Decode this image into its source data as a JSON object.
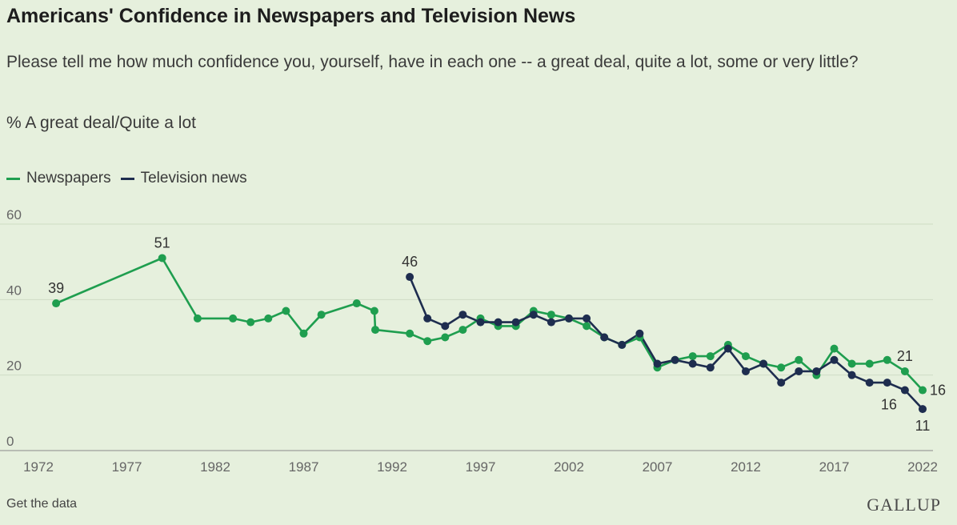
{
  "header": {
    "title": "Americans' Confidence in Newspapers and Television News",
    "subtitle": "Please tell me how much confidence you, yourself, have in each one -- a great deal, quite a lot, some or very little?",
    "measure": "% A great deal/Quite a lot"
  },
  "footer": {
    "data_link": "Get the data",
    "logo": "GALLUP"
  },
  "colors": {
    "newspapers": "#1f9e4f",
    "television": "#1e2d4f",
    "grid": "#cfdcc4",
    "axis_text": "#666666",
    "background": "#e6f0dd"
  },
  "chart_data": {
    "type": "line",
    "ylim": [
      0,
      60
    ],
    "yticks": [
      0,
      20,
      40,
      60
    ],
    "xlim": [
      1972,
      2022
    ],
    "xticks": [
      1972,
      1977,
      1982,
      1987,
      1992,
      1997,
      2002,
      2007,
      2012,
      2017,
      2022
    ],
    "grid": "horizontal",
    "legend": "top-left",
    "series": [
      {
        "name": "Newspapers",
        "color": "#1f9e4f",
        "points": [
          [
            1973,
            39
          ],
          [
            1979,
            51
          ],
          [
            1981,
            35
          ],
          [
            1983,
            35
          ],
          [
            1984,
            34
          ],
          [
            1985,
            35
          ],
          [
            1986,
            37
          ],
          [
            1987,
            31
          ],
          [
            1988,
            36
          ],
          [
            1990,
            39
          ],
          [
            1991.0,
            37
          ],
          [
            1991.05,
            32
          ],
          [
            1993,
            31
          ],
          [
            1994,
            29
          ],
          [
            1995,
            30
          ],
          [
            1996,
            32
          ],
          [
            1997,
            35
          ],
          [
            1998,
            33
          ],
          [
            1999,
            33
          ],
          [
            2000,
            37
          ],
          [
            2001,
            36
          ],
          [
            2002,
            35
          ],
          [
            2003,
            33
          ],
          [
            2004,
            30
          ],
          [
            2005,
            28
          ],
          [
            2006,
            30
          ],
          [
            2007,
            22
          ],
          [
            2008,
            24
          ],
          [
            2009,
            25
          ],
          [
            2010,
            25
          ],
          [
            2011,
            28
          ],
          [
            2012,
            25
          ],
          [
            2013,
            23
          ],
          [
            2014,
            22
          ],
          [
            2015,
            24
          ],
          [
            2016,
            20
          ],
          [
            2017,
            27
          ],
          [
            2018,
            23
          ],
          [
            2019,
            23
          ],
          [
            2020,
            24
          ],
          [
            2021,
            21
          ],
          [
            2022,
            16
          ]
        ]
      },
      {
        "name": "Television news",
        "color": "#1e2d4f",
        "points": [
          [
            1993,
            46
          ],
          [
            1994,
            35
          ],
          [
            1995,
            33
          ],
          [
            1996,
            36
          ],
          [
            1997,
            34
          ],
          [
            1998,
            34
          ],
          [
            1999,
            34
          ],
          [
            2000,
            36
          ],
          [
            2001,
            34
          ],
          [
            2002,
            35
          ],
          [
            2003,
            35
          ],
          [
            2004,
            30
          ],
          [
            2005,
            28
          ],
          [
            2006,
            31
          ],
          [
            2007,
            23
          ],
          [
            2008,
            24
          ],
          [
            2009,
            23
          ],
          [
            2010,
            22
          ],
          [
            2011,
            27
          ],
          [
            2012,
            21
          ],
          [
            2013,
            23
          ],
          [
            2014,
            18
          ],
          [
            2015,
            21
          ],
          [
            2016,
            21
          ],
          [
            2017,
            24
          ],
          [
            2018,
            20
          ],
          [
            2019,
            18
          ],
          [
            2020,
            18
          ],
          [
            2021,
            16
          ],
          [
            2022,
            11
          ]
        ]
      }
    ],
    "annotations": [
      {
        "series": "Newspapers",
        "x": 1973,
        "y": 39,
        "label": "39",
        "pos": "above"
      },
      {
        "series": "Newspapers",
        "x": 1979,
        "y": 51,
        "label": "51",
        "pos": "above"
      },
      {
        "series": "Television news",
        "x": 1993,
        "y": 46,
        "label": "46",
        "pos": "above"
      },
      {
        "series": "Newspapers",
        "x": 2021,
        "y": 21,
        "label": "21",
        "pos": "above"
      },
      {
        "series": "Newspapers",
        "x": 2022,
        "y": 16,
        "label": "16",
        "pos": "right"
      },
      {
        "series": "Television news",
        "x": 2021,
        "y": 16,
        "label": "16",
        "pos": "below-left"
      },
      {
        "series": "Television news",
        "x": 2022,
        "y": 11,
        "label": "11",
        "pos": "below"
      }
    ]
  }
}
